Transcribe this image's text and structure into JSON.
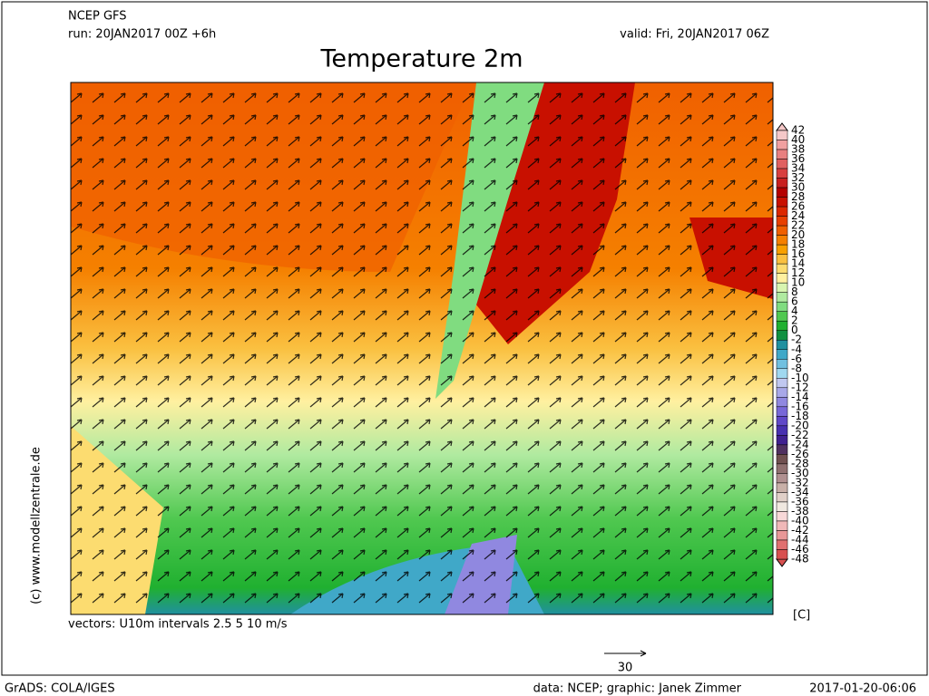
{
  "header": {
    "model": "NCEP GFS",
    "run": "run: 20JAN2017 00Z +6h",
    "valid": "valid: Fri, 20JAN2017 06Z",
    "title": "Temperature 2m"
  },
  "legend": {
    "levels": [
      42,
      40,
      38,
      36,
      34,
      32,
      30,
      28,
      26,
      24,
      22,
      20,
      18,
      16,
      14,
      12,
      10,
      8,
      6,
      4,
      2,
      0,
      -2,
      -4,
      -6,
      -8,
      -10,
      -12,
      -14,
      -16,
      -18,
      -20,
      -22,
      -24,
      -26,
      -28,
      -30,
      -32,
      -34,
      -36,
      -38,
      -40,
      -42,
      -44,
      -46,
      -48
    ],
    "colors": [
      "#f5c8c8",
      "#f0a0a0",
      "#e88080",
      "#e06060",
      "#d84040",
      "#c82020",
      "#b40000",
      "#c81000",
      "#dc2800",
      "#e84000",
      "#f06000",
      "#f58000",
      "#f8a000",
      "#fac040",
      "#fcdc70",
      "#fff0a0",
      "#d8f5b0",
      "#b0eaa0",
      "#80dc80",
      "#50c850",
      "#20b030",
      "#109040",
      "#2090a0",
      "#40a8c8",
      "#70c0e0",
      "#a0d8f0",
      "#c0c8f0",
      "#a8a8e8",
      "#9088e0",
      "#7868d8",
      "#6048c8",
      "#4830b0",
      "#402090",
      "#503060",
      "#705050",
      "#907070",
      "#b09090",
      "#c8b0a8",
      "#e0d0c8",
      "#f0e8e0",
      "#f8d8d8",
      "#f0b8b8",
      "#e89898",
      "#e07070",
      "#d85050"
    ],
    "unit": "[C]"
  },
  "footer": {
    "vectors": "vectors: U10m intervals 2.5 5 10 m/s",
    "scale": "30",
    "side": "(c) www.modellzentrale.de",
    "grads": "GrADS: COLA/IGES",
    "credit": "data: NCEP; graphic: Janek Zimmer",
    "timestamp": "2017-01-20-06:06"
  }
}
